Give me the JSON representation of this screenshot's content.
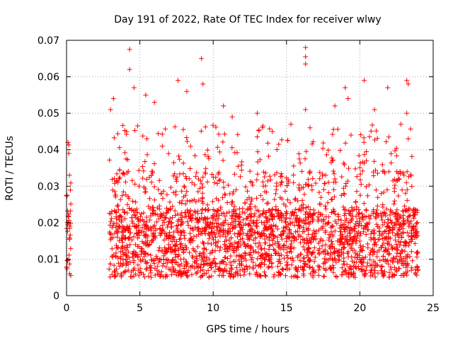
{
  "chart_data": {
    "type": "scatter",
    "title": "Day 191 of 2022, Rate Of TEC Index for receiver wlwy",
    "xlabel": "GPS time / hours",
    "ylabel": "ROTI / TECUs",
    "xlim": [
      0,
      25
    ],
    "ylim": [
      0,
      0.07
    ],
    "xticks": [
      0,
      5,
      10,
      15,
      20,
      25
    ],
    "xtick_labels": [
      "0",
      "5",
      "10",
      "15",
      "20",
      "25"
    ],
    "yticks": [
      0,
      0.01,
      0.02,
      0.03,
      0.04,
      0.05,
      0.06,
      0.07
    ],
    "ytick_labels": [
      "0",
      "0.01",
      "0.02",
      "0.03",
      "0.04",
      "0.05",
      "0.06",
      "0.07"
    ],
    "grid": true,
    "marker": "+",
    "color": "#ff0000",
    "series": [
      {
        "name": "ROTI",
        "segments": [
          {
            "start_hour": 0.0,
            "end_hour": 0.3
          },
          {
            "start_hour": 2.9,
            "end_hour": 24.0
          }
        ],
        "typical_range": [
          0.005,
          0.03
        ],
        "median_value": 0.015
      }
    ],
    "highlighted_points": [
      {
        "x": 0.1,
        "y": 0.042
      },
      {
        "x": 0.15,
        "y": 0.039
      },
      {
        "x": 0.2,
        "y": 0.033
      },
      {
        "x": 3.0,
        "y": 0.051
      },
      {
        "x": 3.2,
        "y": 0.054
      },
      {
        "x": 4.3,
        "y": 0.0675
      },
      {
        "x": 4.3,
        "y": 0.062
      },
      {
        "x": 4.6,
        "y": 0.057
      },
      {
        "x": 5.4,
        "y": 0.055
      },
      {
        "x": 6.0,
        "y": 0.053
      },
      {
        "x": 7.6,
        "y": 0.059
      },
      {
        "x": 8.2,
        "y": 0.056
      },
      {
        "x": 9.2,
        "y": 0.065
      },
      {
        "x": 9.3,
        "y": 0.058
      },
      {
        "x": 10.7,
        "y": 0.052
      },
      {
        "x": 11.3,
        "y": 0.049
      },
      {
        "x": 13.0,
        "y": 0.05
      },
      {
        "x": 15.3,
        "y": 0.047
      },
      {
        "x": 16.3,
        "y": 0.068
      },
      {
        "x": 16.3,
        "y": 0.0655
      },
      {
        "x": 16.3,
        "y": 0.0635
      },
      {
        "x": 16.3,
        "y": 0.051
      },
      {
        "x": 16.6,
        "y": 0.046
      },
      {
        "x": 18.3,
        "y": 0.052
      },
      {
        "x": 19.0,
        "y": 0.057
      },
      {
        "x": 19.2,
        "y": 0.054
      },
      {
        "x": 20.3,
        "y": 0.059
      },
      {
        "x": 21.0,
        "y": 0.051
      },
      {
        "x": 21.9,
        "y": 0.057
      },
      {
        "x": 23.2,
        "y": 0.059
      },
      {
        "x": 23.3,
        "y": 0.058
      },
      {
        "x": 23.2,
        "y": 0.05
      },
      {
        "x": 23.3,
        "y": 0.043
      },
      {
        "x": 22.8,
        "y": 0.047
      }
    ]
  }
}
